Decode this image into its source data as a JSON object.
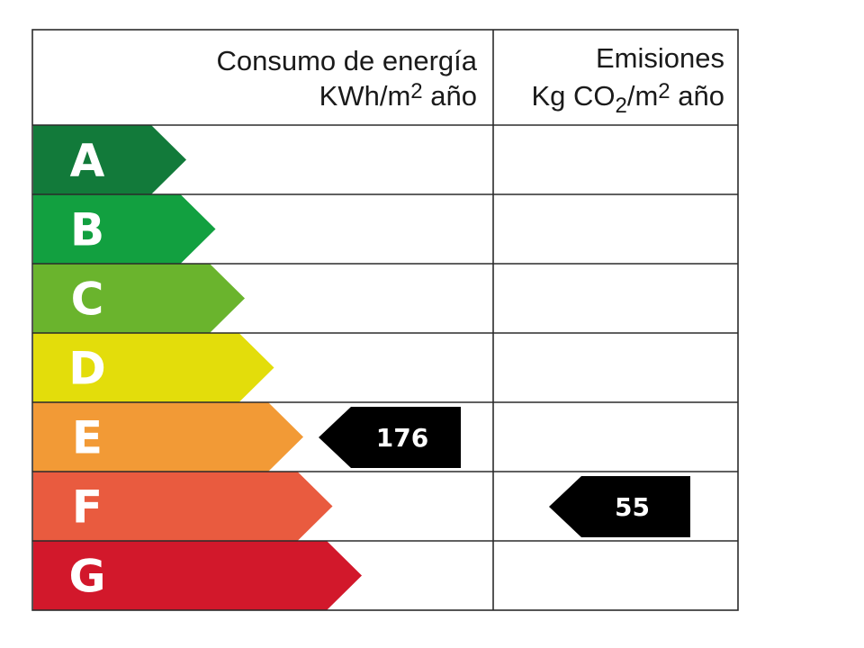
{
  "header": {
    "energy_title": "Consumo de energía",
    "energy_unit_pre": "KWh/m",
    "energy_unit_sup": "2",
    "energy_unit_post": " año",
    "emissions_title": "Emisiones",
    "emissions_unit_pre": "Kg CO",
    "emissions_unit_sub": "2",
    "emissions_unit_mid": "/m",
    "emissions_unit_sup": "2",
    "emissions_unit_post": " año"
  },
  "classes": [
    {
      "letter": "A",
      "color": "#127a3a"
    },
    {
      "letter": "B",
      "color": "#12a040"
    },
    {
      "letter": "C",
      "color": "#6ab42d"
    },
    {
      "letter": "D",
      "color": "#e3dd0b"
    },
    {
      "letter": "E",
      "color": "#f29a36"
    },
    {
      "letter": "F",
      "color": "#e95b3f"
    },
    {
      "letter": "G",
      "color": "#d2182b"
    }
  ],
  "energy_rating": {
    "value": "176",
    "class": "E"
  },
  "emissions_rating": {
    "value": "55",
    "class": "F"
  },
  "marker_color": "#000000"
}
